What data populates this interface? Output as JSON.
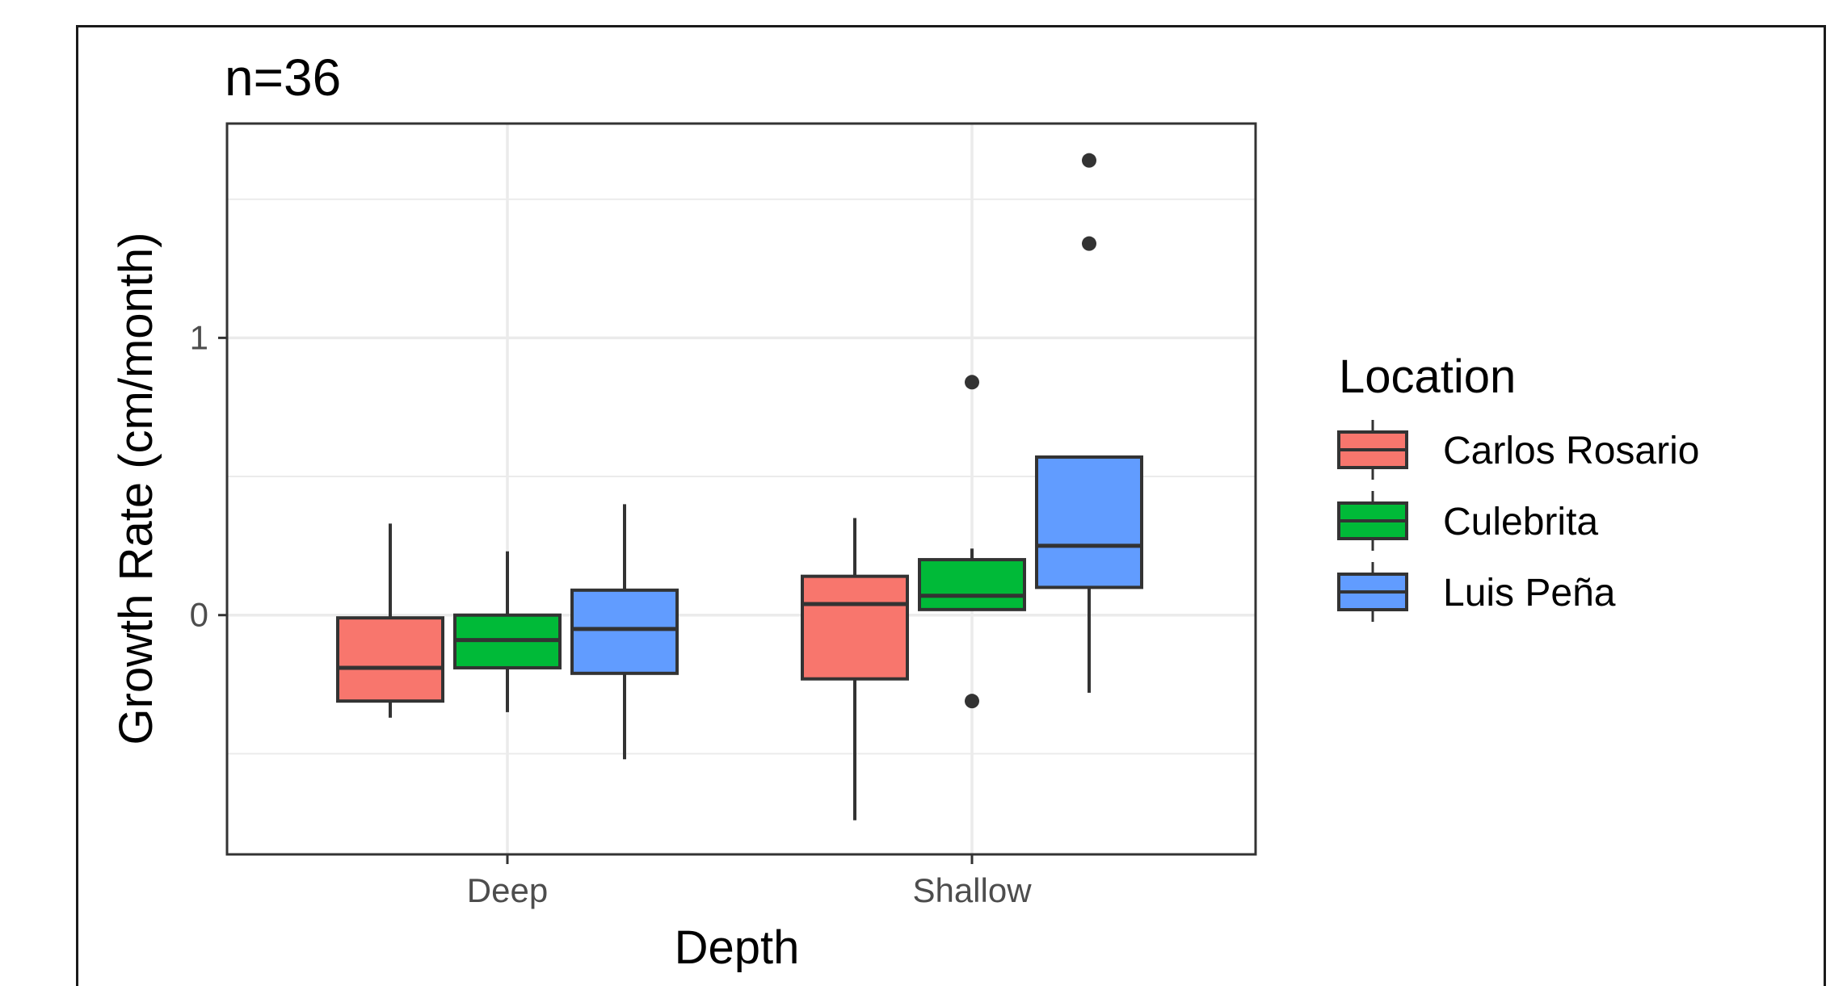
{
  "chart_data": {
    "type": "box",
    "title": "n=36",
    "xlabel": "Depth",
    "ylabel": "Growth Rate (cm/month)",
    "categories": [
      "Deep",
      "Shallow"
    ],
    "ylim": [
      -0.86,
      1.77
    ],
    "yticks": [
      0,
      1
    ],
    "yticks_minor": [
      -0.5,
      0.5,
      1.5
    ],
    "grid": true,
    "legend": {
      "title": "Location",
      "position": "right"
    },
    "series": [
      {
        "name": "Carlos Rosario",
        "color": "#F8766D",
        "boxes": [
          {
            "category": "Deep",
            "lower_whisker": -0.37,
            "q1": -0.31,
            "median": -0.19,
            "q3": -0.01,
            "upper_whisker": 0.33,
            "outliers": []
          },
          {
            "category": "Shallow",
            "lower_whisker": -0.74,
            "q1": -0.23,
            "median": 0.04,
            "q3": 0.14,
            "upper_whisker": 0.35,
            "outliers": []
          }
        ]
      },
      {
        "name": "Culebrita",
        "color": "#00BA38",
        "boxes": [
          {
            "category": "Deep",
            "lower_whisker": -0.35,
            "q1": -0.19,
            "median": -0.09,
            "q3": 0.0,
            "upper_whisker": 0.23,
            "outliers": []
          },
          {
            "category": "Shallow",
            "lower_whisker": 0.02,
            "q1": 0.02,
            "median": 0.07,
            "q3": 0.2,
            "upper_whisker": 0.24,
            "outliers": [
              0.84,
              -0.31
            ]
          }
        ]
      },
      {
        "name": "Luis Peña",
        "color": "#619CFF",
        "boxes": [
          {
            "category": "Deep",
            "lower_whisker": -0.52,
            "q1": -0.21,
            "median": -0.05,
            "q3": 0.09,
            "upper_whisker": 0.4,
            "outliers": []
          },
          {
            "category": "Shallow",
            "lower_whisker": -0.28,
            "q1": 0.1,
            "median": 0.25,
            "q3": 0.57,
            "upper_whisker": 0.57,
            "outliers": [
              1.64,
              1.34
            ]
          }
        ]
      }
    ]
  }
}
